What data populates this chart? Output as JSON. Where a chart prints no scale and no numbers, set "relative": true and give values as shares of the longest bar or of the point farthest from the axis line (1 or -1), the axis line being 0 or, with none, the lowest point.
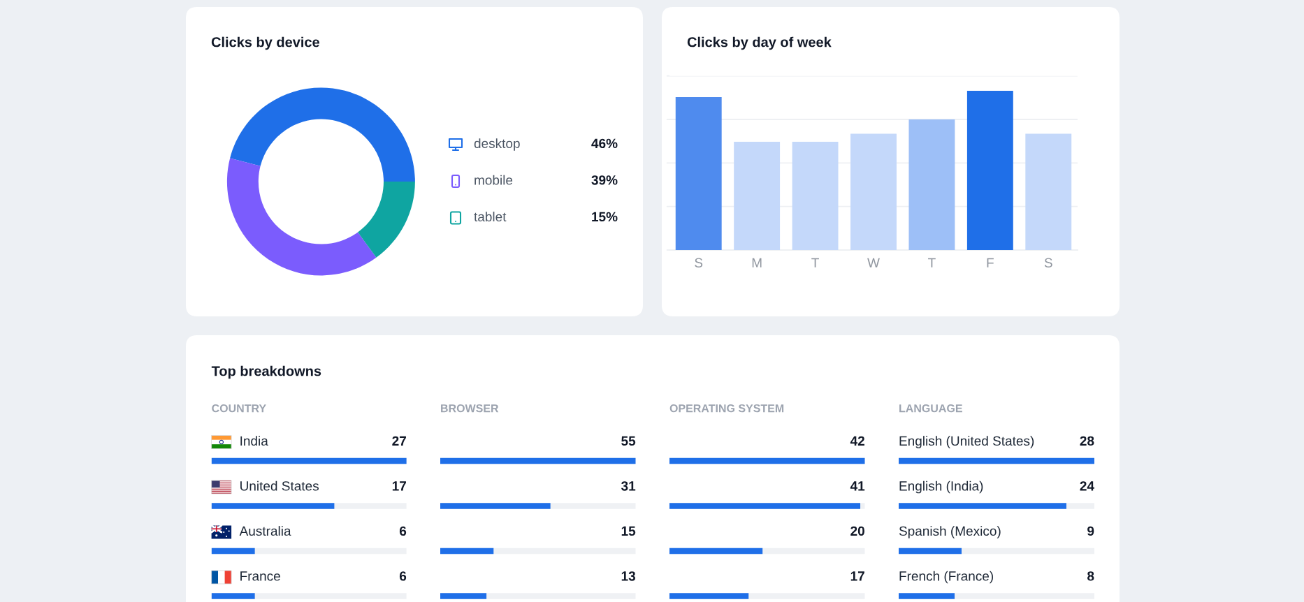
{
  "chart_data": [
    {
      "type": "donut",
      "title": "Clicks by device",
      "categories": [
        "desktop",
        "mobile",
        "tablet"
      ],
      "values": [
        46,
        39,
        15
      ],
      "colors": [
        "#1f6fe8",
        "#7b5cfd",
        "#0fa5a1"
      ],
      "value_labels": [
        "46%",
        "39%",
        "15%"
      ],
      "legend": "right"
    },
    {
      "type": "bar",
      "title": "Clicks by day of week",
      "categories": [
        "S",
        "M",
        "T",
        "W",
        "T",
        "F",
        "S"
      ],
      "values": [
        0.96,
        0.68,
        0.68,
        0.73,
        0.82,
        1,
        0.73
      ],
      "colors": [
        "#4f8bee",
        "#c4d8fa",
        "#c4d8fa",
        "#c4d8fa",
        "#9dbff7",
        "#1f6fe8",
        "#c4d8fa"
      ],
      "relative": true,
      "grid": "y"
    },
    {
      "type": "other",
      "title": "Top breakdowns"
    },
    {
      "type": "bar",
      "orientation": "horizontal",
      "title": "COUNTRY",
      "categories": [
        "India",
        "United States",
        "Australia",
        "France"
      ],
      "values": [
        27,
        17,
        6,
        6
      ],
      "color": "#1f6fe8",
      "data_labels": true,
      "tick_labels": "y"
    },
    {
      "type": "bar",
      "orientation": "horizontal",
      "title": "BROWSER",
      "categories": [
        null,
        null,
        null,
        null
      ],
      "values": [
        55,
        31,
        15,
        13
      ],
      "color": "#1f6fe8",
      "data_labels": true,
      "tick_labels": "y"
    },
    {
      "type": "bar",
      "orientation": "horizontal",
      "title": "OPERATING SYSTEM",
      "categories": [
        null,
        null,
        null,
        null
      ],
      "values": [
        42,
        41,
        20,
        17
      ],
      "color": "#1f6fe8",
      "data_labels": true,
      "tick_labels": "y"
    },
    {
      "type": "bar",
      "orientation": "horizontal",
      "title": "LANGUAGE",
      "categories": [
        "English (United States)",
        "English (India)",
        "Spanish (Mexico)",
        "French (France)"
      ],
      "values": [
        28,
        24,
        9,
        8
      ],
      "color": "#1f6fe8",
      "data_labels": true,
      "tick_labels": "y"
    }
  ]
}
